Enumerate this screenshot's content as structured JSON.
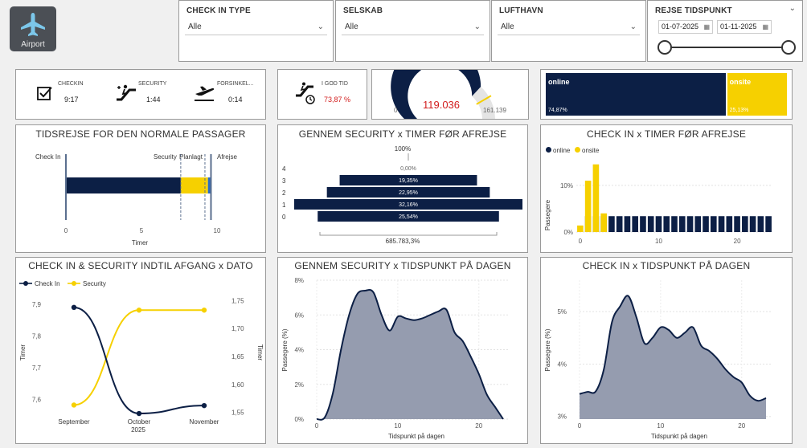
{
  "logo": {
    "label": "Airport"
  },
  "filters": [
    {
      "title": "CHECK IN TYPE",
      "value": "Alle"
    },
    {
      "title": "SELSKAB",
      "value": "Alle"
    },
    {
      "title": "LUFTHAVN",
      "value": "Alle"
    }
  ],
  "date_filter": {
    "title": "REJSE TIDSPUNKT",
    "from": "01-07-2025",
    "to": "01-11-2025"
  },
  "kpis": {
    "checkin": {
      "label": "CHECKIN",
      "value": "9:17"
    },
    "security": {
      "label": "SECURITY",
      "value": "1:44"
    },
    "delay": {
      "label": "FORSINKEL...",
      "value": "0:14"
    },
    "on_time": {
      "label": "I GOD TID",
      "value": "73,87 %"
    }
  },
  "gauge": {
    "value_label": "119.036",
    "min_label": "0",
    "max_label": "161.139",
    "value": 119036,
    "min": 0,
    "max": 161139,
    "target": 134000
  },
  "checkin_split": {
    "online": {
      "label": "online",
      "pct_label": "74,87%",
      "pct": 74.87
    },
    "onsite": {
      "label": "onsite",
      "pct_label": "25,13%",
      "pct": 25.13
    }
  },
  "journey": {
    "title": "TIDSREJSE FOR DEN NORMALE PASSAGER",
    "labels": {
      "checkin": "Check In",
      "security": "Security",
      "planned": "Planlagt",
      "departure": "Afrejse"
    },
    "xlabel": "Timer",
    "ticks": [
      "0",
      "5",
      "10"
    ],
    "xmax": 10,
    "markers": {
      "checkin": 0,
      "security": 7.6,
      "planned": 9.2,
      "departure": 9.6
    },
    "segments": {
      "dark_end": 7.6,
      "yellow_end": 9.4,
      "blue_end": 9.6
    }
  },
  "security_funnel": {
    "title": "GENNEM SECURITY x TIMER FØR AFREJSE",
    "top_label": "100%",
    "total_label": "685.783,3%",
    "rows": [
      {
        "cat": "4",
        "label": "0,00%",
        "value": 0.0
      },
      {
        "cat": "3",
        "label": "19,35%",
        "value": 19.35
      },
      {
        "cat": "2",
        "label": "22,95%",
        "value": 22.95
      },
      {
        "cat": "1",
        "label": "32,16%",
        "value": 32.16
      },
      {
        "cat": "0",
        "label": "25,54%",
        "value": 25.54
      }
    ]
  },
  "checkin_hours": {
    "title": "CHECK IN x TIMER FØR AFREJSE",
    "ylabel": "Passegere",
    "legend": [
      "online",
      "onsite"
    ],
    "ytick_labels": [
      "0%",
      "10%"
    ],
    "xtick_labels": [
      "0",
      "10",
      "20"
    ],
    "chart_data": {
      "type": "bar",
      "x": [
        0,
        1,
        2,
        3,
        4,
        5,
        6,
        7,
        8,
        9,
        10,
        11,
        12,
        13,
        14,
        15,
        16,
        17,
        18,
        19,
        20,
        21,
        22,
        23,
        24
      ],
      "series": [
        {
          "name": "onsite",
          "values": [
            1.4,
            11.0,
            14.5,
            4.0,
            0,
            0,
            0,
            0,
            0,
            0,
            0,
            0,
            0,
            0,
            0,
            0,
            0,
            0,
            0,
            0,
            0,
            0,
            0,
            0,
            0
          ]
        },
        {
          "name": "online",
          "values": [
            0,
            3.4,
            3.4,
            3.4,
            3.4,
            3.4,
            3.4,
            3.4,
            3.4,
            3.4,
            3.4,
            3.4,
            3.4,
            3.4,
            3.4,
            3.4,
            3.4,
            3.4,
            3.4,
            3.4,
            3.4,
            3.4,
            3.4,
            3.4,
            3.4
          ]
        }
      ],
      "ylim": [
        0,
        16
      ]
    }
  },
  "trend": {
    "title": "CHECK IN & SECURITY INDTIL AFGANG x DATO",
    "legend": [
      "Check In",
      "Security"
    ],
    "ylabel_left": "Timer",
    "ylabel_right": "Timer",
    "yleft_ticks": [
      "7,9",
      "7,8",
      "7,7",
      "7,6"
    ],
    "yright_ticks": [
      "1,75",
      "1,70",
      "1,65",
      "1,60",
      "1,55"
    ],
    "x_labels": [
      "September",
      "October",
      "November"
    ],
    "x_year": "2025",
    "chart_data": {
      "type": "line",
      "categories": [
        "September",
        "October",
        "November"
      ],
      "series": [
        {
          "name": "Check In",
          "values": [
            7.89,
            7.555,
            7.58
          ],
          "axis": "left",
          "ylim": [
            7.55,
            7.9
          ]
        },
        {
          "name": "Security",
          "values": [
            1.563,
            1.733,
            1.733
          ],
          "axis": "right",
          "ylim": [
            1.55,
            1.75
          ]
        }
      ]
    }
  },
  "security_day": {
    "title": "GENNEM SECURITY x TIDSPUNKT PÅ DAGEN",
    "ylabel": "Passegere (%)",
    "xlabel": "Tidspunkt på dagen",
    "ytick_labels": [
      "0%",
      "2%",
      "4%",
      "6%",
      "8%"
    ],
    "xtick_labels": [
      "0",
      "10",
      "20"
    ],
    "chart_data": {
      "type": "area",
      "x": [
        0,
        1,
        2,
        3,
        4,
        5,
        6,
        7,
        8,
        9,
        10,
        11,
        12,
        13,
        14,
        15,
        16,
        17,
        18,
        19,
        20,
        21,
        22,
        23
      ],
      "values": [
        0.0,
        0.1,
        1.5,
        4.0,
        6.0,
        7.2,
        7.4,
        7.3,
        6.0,
        5.1,
        5.9,
        5.8,
        5.7,
        5.8,
        6.0,
        6.2,
        6.3,
        5.0,
        4.5,
        3.6,
        2.6,
        1.4,
        0.7,
        0.0
      ],
      "ylim": [
        0,
        8
      ],
      "xlim": [
        0,
        23
      ]
    }
  },
  "checkin_day": {
    "title": "CHECK IN x TIDSPUNKT PÅ DAGEN",
    "ylabel": "Passegere (%)",
    "xlabel": "Tidspunkt på dagen",
    "ytick_labels": [
      "3%",
      "4%",
      "5%"
    ],
    "xtick_labels": [
      "0",
      "10",
      "20"
    ],
    "chart_data": {
      "type": "area",
      "x": [
        0,
        1,
        2,
        3,
        4,
        5,
        6,
        7,
        8,
        9,
        10,
        11,
        12,
        13,
        14,
        15,
        16,
        17,
        18,
        19,
        20,
        21,
        22,
        23
      ],
      "values": [
        3.43,
        3.47,
        3.48,
        3.9,
        4.8,
        5.1,
        5.3,
        4.9,
        4.4,
        4.5,
        4.7,
        4.65,
        4.5,
        4.6,
        4.7,
        4.35,
        4.25,
        4.1,
        3.9,
        3.75,
        3.65,
        3.4,
        3.3,
        3.35
      ],
      "ylim": [
        2.95,
        5.6
      ],
      "xlim": [
        0,
        23
      ]
    }
  },
  "colors": {
    "navy": "#0c1f45",
    "yellow": "#f6d000",
    "grey_area": "#959caf",
    "blue": "#2a6cc4"
  }
}
